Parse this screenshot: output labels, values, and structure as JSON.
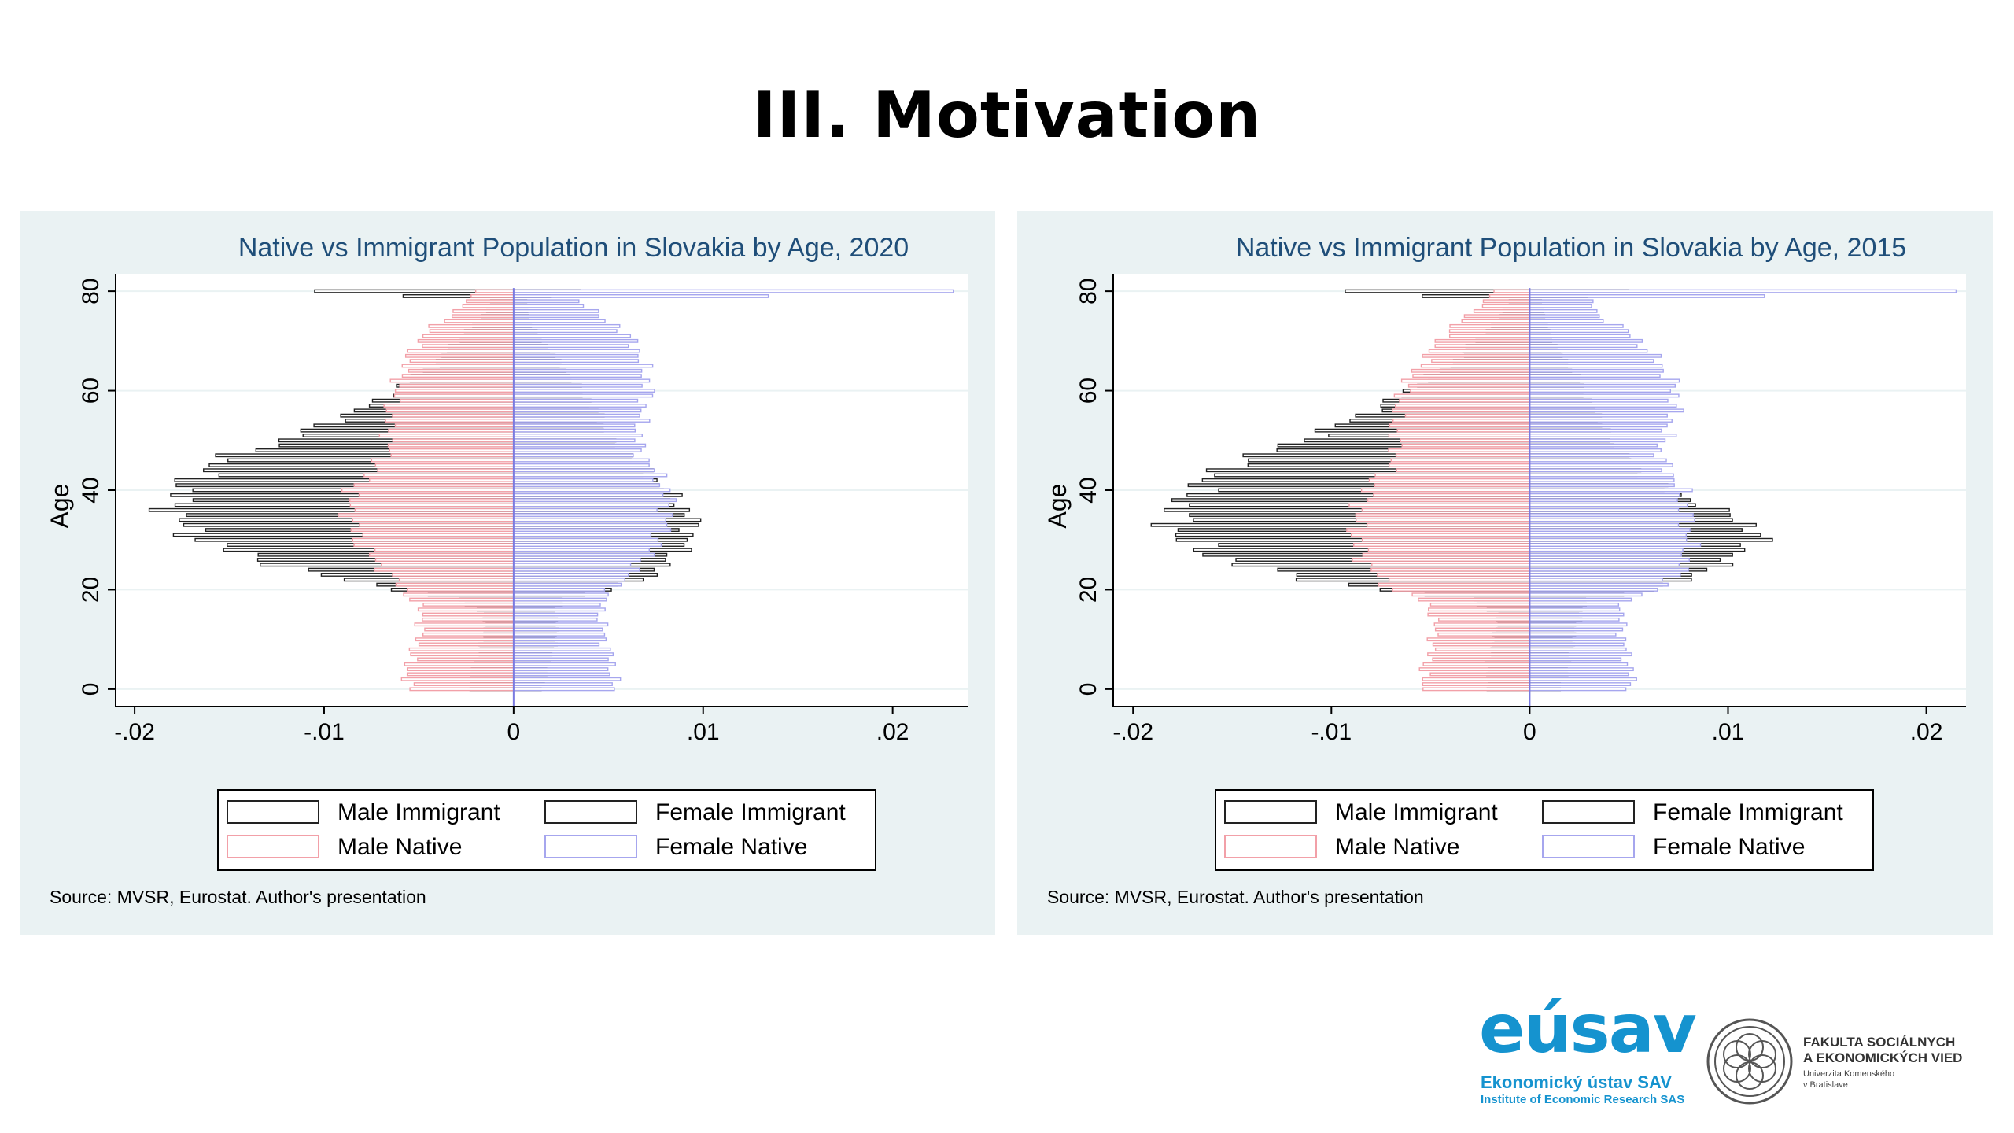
{
  "slide": {
    "title": "III. Motivation"
  },
  "chart_data": [
    {
      "type": "bar",
      "orientation": "horizontal",
      "subtype": "population-pyramid",
      "title": "Native vs Immigrant Population in Slovakia by Age, 2020",
      "ylabel": "Age",
      "xlabel": "",
      "xlim": [
        -0.021,
        0.024
      ],
      "ylim": [
        -3.5,
        83.5
      ],
      "xticks": [
        -0.02,
        -0.01,
        0,
        0.01,
        0.02
      ],
      "xtick_labels": [
        "-.02",
        "-.01",
        "0",
        ".01",
        ".02"
      ],
      "yticks": [
        0,
        20,
        40,
        60,
        80
      ],
      "ytick_labels": [
        "0",
        "20",
        "40",
        "60",
        "80"
      ],
      "grid": true,
      "legend": {
        "placement": "bottom",
        "entries": [
          {
            "label": "Male Immigrant",
            "color": "#222222"
          },
          {
            "label": "Female Immigrant",
            "color": "#222222"
          },
          {
            "label": "Male Native",
            "color": "#f2a0a8"
          },
          {
            "label": "Female Native",
            "color": "#a6a6ee"
          }
        ]
      },
      "source": "Source: MVSR, Eurostat. Author's presentation",
      "age_knots": [
        0,
        5,
        10,
        15,
        18,
        20,
        22,
        25,
        28,
        30,
        33,
        35,
        37,
        40,
        42,
        45,
        48,
        50,
        55,
        58,
        60,
        63,
        65,
        68,
        70,
        73,
        75,
        78,
        80
      ],
      "series": [
        {
          "name": "Male Immigrant",
          "side": "left",
          "values": [
            0.0023,
            0.0021,
            0.0016,
            0.0015,
            0.003,
            0.006,
            0.009,
            0.0125,
            0.015,
            0.0165,
            0.0175,
            0.0178,
            0.018,
            0.0175,
            0.017,
            0.016,
            0.014,
            0.012,
            0.009,
            0.007,
            0.0063,
            0.0052,
            0.0042,
            0.0035,
            0.003,
            0.0022,
            0.0017,
            0.0012,
            0.0105
          ]
        },
        {
          "name": "Male Native",
          "side": "left",
          "values": [
            0.0056,
            0.0056,
            0.005,
            0.0048,
            0.0053,
            0.0058,
            0.0063,
            0.0071,
            0.0078,
            0.0082,
            0.0085,
            0.0086,
            0.0087,
            0.0085,
            0.008,
            0.0072,
            0.0066,
            0.0066,
            0.0066,
            0.0064,
            0.0062,
            0.006,
            0.0057,
            0.0054,
            0.005,
            0.0042,
            0.0034,
            0.0024,
            0.002
          ]
        },
        {
          "name": "Female Immigrant",
          "side": "right",
          "values": [
            0.0015,
            0.0018,
            0.0023,
            0.0022,
            0.0025,
            0.005,
            0.0068,
            0.008,
            0.0088,
            0.0092,
            0.0095,
            0.0093,
            0.0088,
            0.008,
            0.0075,
            0.0068,
            0.0058,
            0.005,
            0.0045,
            0.004,
            0.0035,
            0.003,
            0.0025,
            0.002,
            0.0015,
            0.001,
            0.0008,
            0.0007,
            0.0035
          ]
        },
        {
          "name": "Female Native",
          "side": "right",
          "values": [
            0.0053,
            0.0052,
            0.0048,
            0.0046,
            0.0047,
            0.0052,
            0.0058,
            0.0066,
            0.0073,
            0.0077,
            0.008,
            0.0081,
            0.0082,
            0.008,
            0.0078,
            0.0072,
            0.0066,
            0.0066,
            0.0067,
            0.007,
            0.0071,
            0.007,
            0.0068,
            0.0066,
            0.0062,
            0.0055,
            0.0045,
            0.0035,
            0.0232
          ]
        }
      ]
    },
    {
      "type": "bar",
      "orientation": "horizontal",
      "subtype": "population-pyramid",
      "title": "Native vs Immigrant Population in Slovakia by Age, 2015",
      "ylabel": "Age",
      "xlabel": "",
      "xlim": [
        -0.021,
        0.022
      ],
      "ylim": [
        -3.5,
        83.5
      ],
      "xticks": [
        -0.02,
        -0.01,
        0,
        0.01,
        0.02
      ],
      "xtick_labels": [
        "-.02",
        "-.01",
        "0",
        ".01",
        ".02"
      ],
      "yticks": [
        0,
        20,
        40,
        60,
        80
      ],
      "ytick_labels": [
        "0",
        "20",
        "40",
        "60",
        "80"
      ],
      "grid": true,
      "legend": {
        "placement": "bottom",
        "entries": [
          {
            "label": "Male Immigrant",
            "color": "#222222"
          },
          {
            "label": "Female Immigrant",
            "color": "#222222"
          },
          {
            "label": "Male Native",
            "color": "#f2a0a8"
          },
          {
            "label": "Female Native",
            "color": "#a6a6ee"
          }
        ]
      },
      "source": "Source: MVSR, Eurostat. Author's presentation",
      "age_knots": [
        0,
        5,
        10,
        15,
        18,
        20,
        22,
        25,
        28,
        30,
        33,
        35,
        37,
        40,
        42,
        45,
        48,
        50,
        55,
        58,
        60,
        63,
        65,
        68,
        70,
        73,
        75,
        78,
        80
      ],
      "series": [
        {
          "name": "Male Immigrant",
          "side": "left",
          "values": [
            0.002,
            0.0022,
            0.0018,
            0.0016,
            0.003,
            0.0075,
            0.011,
            0.0145,
            0.0165,
            0.0175,
            0.018,
            0.0178,
            0.0175,
            0.017,
            0.0163,
            0.0152,
            0.013,
            0.0115,
            0.0085,
            0.007,
            0.0062,
            0.005,
            0.004,
            0.0033,
            0.0028,
            0.002,
            0.0015,
            0.0011,
            0.0093
          ]
        },
        {
          "name": "Male Native",
          "side": "left",
          "values": [
            0.0055,
            0.0052,
            0.0048,
            0.0048,
            0.0055,
            0.0068,
            0.0075,
            0.0082,
            0.0086,
            0.0087,
            0.0088,
            0.0087,
            0.0085,
            0.0082,
            0.0078,
            0.007,
            0.0067,
            0.0068,
            0.0068,
            0.0066,
            0.0064,
            0.006,
            0.0055,
            0.005,
            0.0046,
            0.0038,
            0.0032,
            0.0022,
            0.0018
          ]
        },
        {
          "name": "Female Immigrant",
          "side": "right",
          "values": [
            0.0015,
            0.002,
            0.0022,
            0.0025,
            0.003,
            0.006,
            0.008,
            0.0095,
            0.0108,
            0.0115,
            0.0112,
            0.01,
            0.0088,
            0.007,
            0.006,
            0.0052,
            0.0045,
            0.004,
            0.0035,
            0.003,
            0.0028,
            0.0024,
            0.002,
            0.0015,
            0.0012,
            0.0009,
            0.0008,
            0.0006,
            0.005
          ]
        },
        {
          "name": "Female Native",
          "side": "right",
          "values": [
            0.0052,
            0.005,
            0.0047,
            0.0046,
            0.0048,
            0.0065,
            0.0072,
            0.0078,
            0.008,
            0.008,
            0.008,
            0.0079,
            0.0078,
            0.0076,
            0.0074,
            0.0068,
            0.0065,
            0.0068,
            0.0072,
            0.0074,
            0.0073,
            0.007,
            0.0066,
            0.006,
            0.0055,
            0.0045,
            0.0035,
            0.003,
            0.0215
          ]
        }
      ]
    }
  ],
  "logos": {
    "eusav_word": "eúsav",
    "eusav_line1": "Ekonomický ústav SAV",
    "eusav_line2": "Institute of Economic Research SAS",
    "fsev_line1": "FAKULTA SOCIÁLNYCH",
    "fsev_line2": "A EKONOMICKÝCH VIED",
    "fsev_line3": "Univerzita Komenského",
    "fsev_line4": "v Bratislave",
    "brand_color": "#1593cf"
  }
}
